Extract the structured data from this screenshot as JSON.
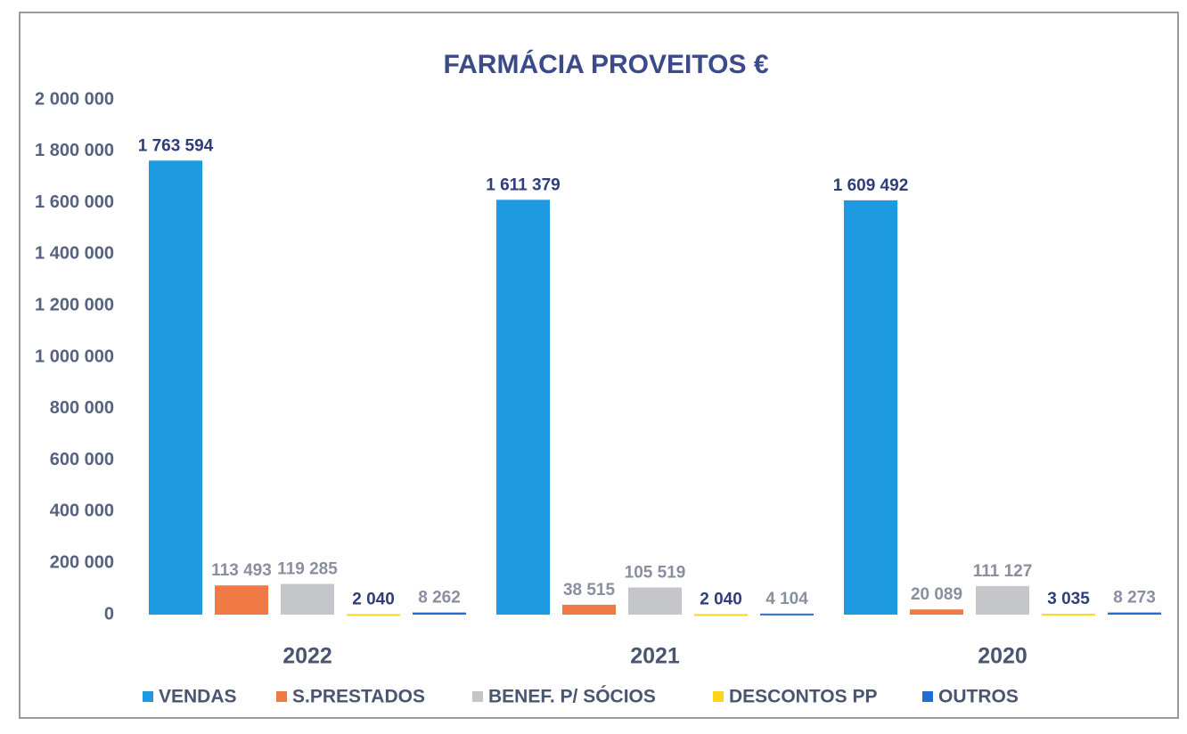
{
  "chart_data": {
    "type": "bar",
    "title": "FARMÁCIA PROVEITOS €",
    "categories": [
      "2022",
      "2021",
      "2020"
    ],
    "series": [
      {
        "name": "VENDAS",
        "color": "#1e9ae0",
        "label_color": "#2f3d7a",
        "values": [
          1763594,
          1611379,
          1609492
        ],
        "value_labels": [
          "1 763 594",
          "1 611 379",
          "1 609 492"
        ]
      },
      {
        "name": "S.PRESTADOS",
        "color": "#f07a45",
        "label_color": "#8a8fa0",
        "values": [
          113493,
          38515,
          20089
        ],
        "value_labels": [
          "113 493",
          "38 515",
          "20 089"
        ]
      },
      {
        "name": "BENEF. P/ SÓCIOS",
        "color": "#c4c6c9",
        "label_color": "#8a8fa0",
        "values": [
          119285,
          105519,
          111127
        ],
        "value_labels": [
          "119 285",
          "105 519",
          "111 127"
        ]
      },
      {
        "name": "DESCONTOS PP",
        "color": "#ffd51c",
        "label_color": "#2f3d7a",
        "values": [
          2040,
          2040,
          3035
        ],
        "value_labels": [
          "2 040",
          "2 040",
          "3 035"
        ]
      },
      {
        "name": "OUTROS",
        "color": "#1f6fd0",
        "label_color": "#8a8fa0",
        "values": [
          8262,
          4104,
          8273
        ],
        "value_labels": [
          "8 262",
          "4 104",
          "8 273"
        ]
      }
    ],
    "ylim": [
      0,
      2000000
    ],
    "yticks": [
      0,
      {
        "value": 200000,
        "label": "200 000"
      },
      {
        "value": 400000,
        "label": "400 000"
      },
      {
        "value": 600000,
        "label": "600 000"
      },
      {
        "value": 800000,
        "label": "800 000"
      },
      {
        "value": 1000000,
        "label": "1 000 000"
      },
      {
        "value": 1200000,
        "label": "1 200 000"
      },
      {
        "value": 1400000,
        "label": "1 400 000"
      },
      {
        "value": 1600000,
        "label": "1 600 000"
      },
      {
        "value": 1800000,
        "label": "1 800 000"
      },
      {
        "value": 2000000,
        "label": "2 000 000"
      }
    ],
    "grid": false,
    "legend": "bottom"
  }
}
